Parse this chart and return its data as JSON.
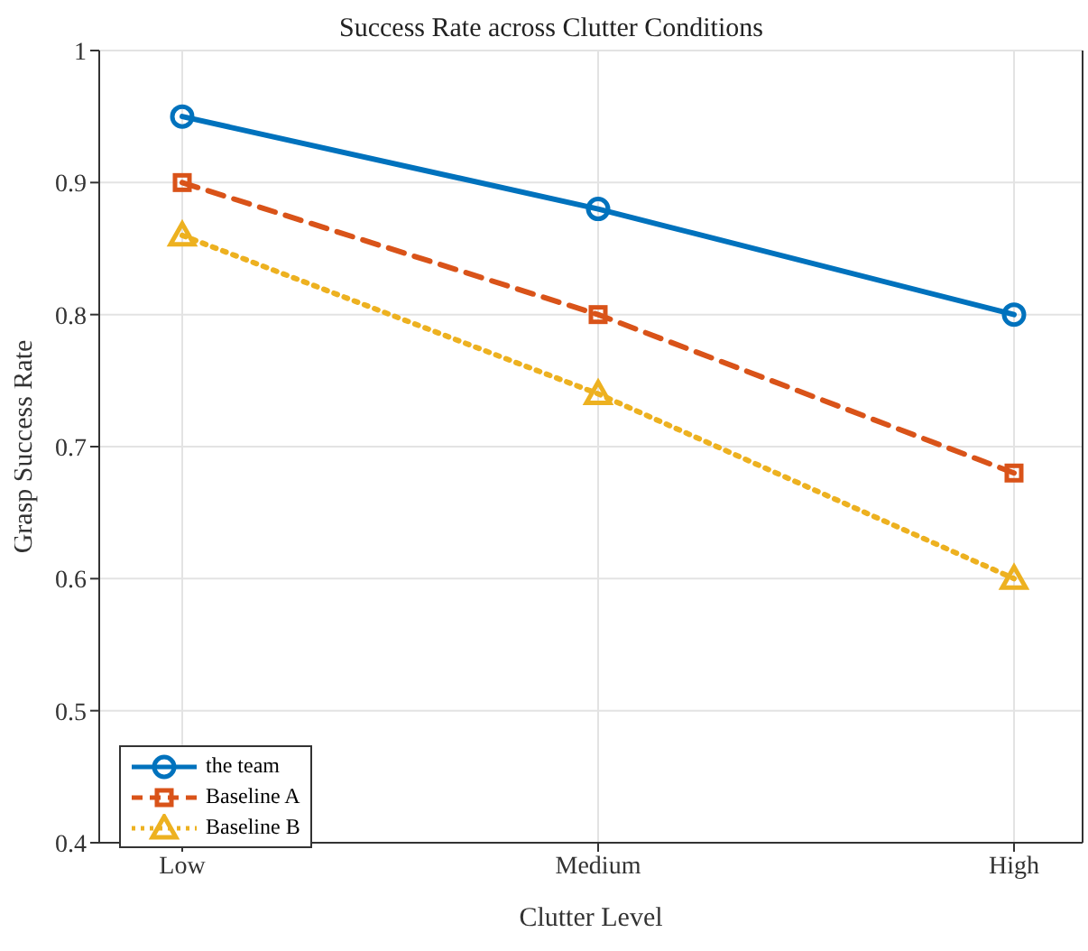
{
  "chart_data": {
    "type": "line",
    "title": "Success Rate across Clutter Conditions",
    "xlabel": "Clutter Level",
    "ylabel": "Grasp Success Rate",
    "categories": [
      "Low",
      "Medium",
      "High"
    ],
    "series": [
      {
        "name": "the team",
        "color": "#0072bd",
        "values": [
          0.95,
          0.88,
          0.8
        ],
        "marker": "circle",
        "line_style": "solid"
      },
      {
        "name": "Baseline A",
        "color": "#d95319",
        "values": [
          0.9,
          0.8,
          0.68
        ],
        "marker": "square",
        "line_style": "dashed"
      },
      {
        "name": "Baseline B",
        "color": "#edb120",
        "values": [
          0.86,
          0.74,
          0.6
        ],
        "marker": "triangle",
        "line_style": "dotted"
      }
    ],
    "ylim": [
      0.4,
      1
    ],
    "yticks": [
      0.4,
      0.5,
      0.6,
      0.7,
      0.8,
      0.9,
      1
    ],
    "grid": true,
    "legend": "bottom left"
  }
}
